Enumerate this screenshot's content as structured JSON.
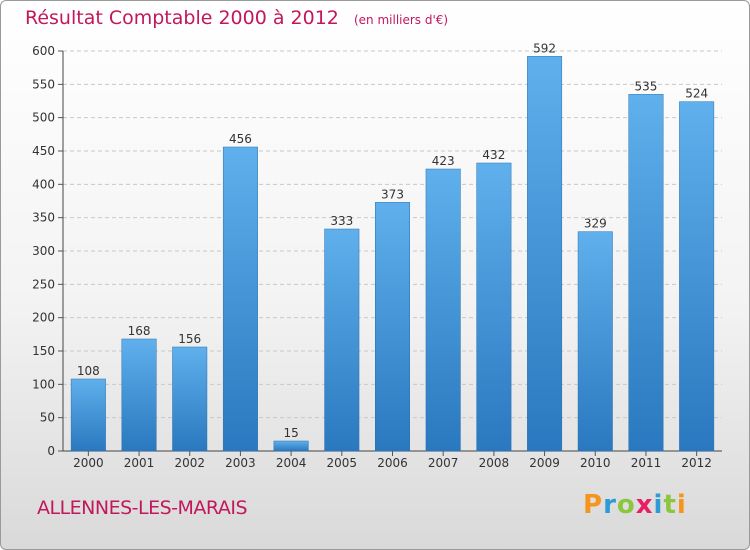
{
  "title": "Résultat Comptable 2000 à 2012",
  "unit": "(en milliers d'€)",
  "location": "ALLENNES-LES-MARAIS",
  "logo_letters": [
    "P",
    "r",
    "o",
    "x",
    "i",
    "t",
    "i"
  ],
  "logo_colors": [
    "#f7941d",
    "#2e9bd6",
    "#8cc63f",
    "#e91e63",
    "#2e9bd6",
    "#8cc63f",
    "#f7941d"
  ],
  "chart_data": {
    "type": "bar",
    "categories": [
      "2000",
      "2001",
      "2002",
      "2003",
      "2004",
      "2005",
      "2006",
      "2007",
      "2008",
      "2009",
      "2010",
      "2011",
      "2012"
    ],
    "values": [
      108,
      168,
      156,
      456,
      15,
      333,
      373,
      423,
      432,
      592,
      329,
      535,
      524
    ],
    "title": "Résultat Comptable 2000 à 2012",
    "subtitle": "(en milliers d'€)",
    "ylim": [
      0,
      600
    ],
    "yticks": [
      0,
      50,
      100,
      150,
      200,
      250,
      300,
      350,
      400,
      450,
      500,
      550,
      600
    ],
    "grid": true,
    "bar_color": "#3a8fd6"
  }
}
